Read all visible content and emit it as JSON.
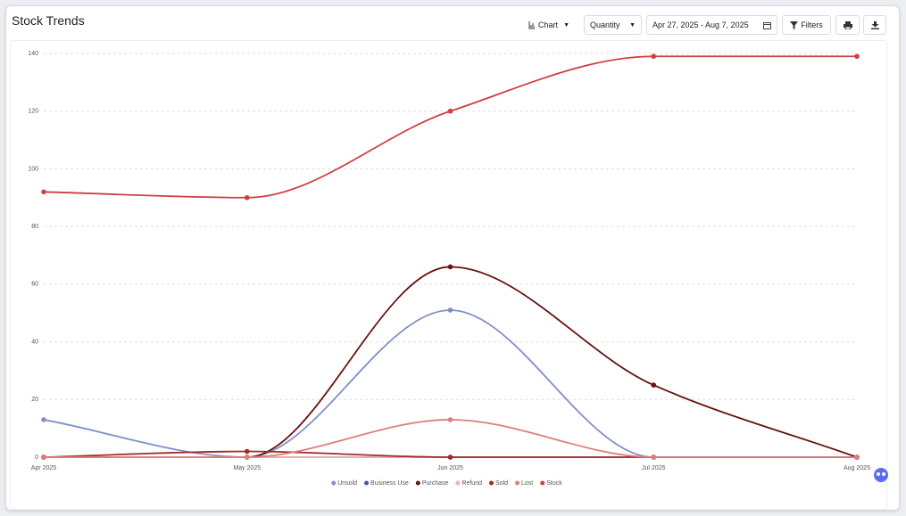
{
  "chart_data": {
    "type": "line",
    "title": "Stock Trends",
    "categories": [
      "Apr 2025",
      "May 2025",
      "Jun 2025",
      "Jul 2025",
      "Aug 2025"
    ],
    "series": [
      {
        "name": "Unsold",
        "color": "#8190c6",
        "values": [
          13,
          0,
          51,
          0,
          0
        ]
      },
      {
        "name": "Business Use",
        "color": "#3f5aa6",
        "values": [
          0,
          0,
          0,
          0,
          0
        ]
      },
      {
        "name": "Purchase",
        "color": "#6a1111",
        "values": [
          0,
          0,
          66,
          25,
          0
        ]
      },
      {
        "name": "Refund",
        "color": "#f2b3b3",
        "values": [
          0,
          0,
          0,
          0,
          0
        ]
      },
      {
        "name": "Sold",
        "color": "#a02a2a",
        "values": [
          0,
          2,
          0,
          0,
          0
        ]
      },
      {
        "name": "Lost",
        "color": "#e07c7c",
        "values": [
          0,
          0,
          13,
          0,
          0
        ]
      },
      {
        "name": "Stock",
        "color": "#cf3e3e",
        "values": [
          92,
          90,
          120,
          139,
          139
        ]
      }
    ],
    "ylim": [
      0,
      140
    ],
    "yticks": [
      0,
      20,
      40,
      60,
      80,
      100,
      120,
      140
    ],
    "grid": true,
    "legend": "bottom"
  },
  "toolbar": {
    "view": "Chart",
    "metric": "Quantity",
    "date_range": "Apr 27, 2025 - Aug 7, 2025",
    "filters": "Filters"
  }
}
